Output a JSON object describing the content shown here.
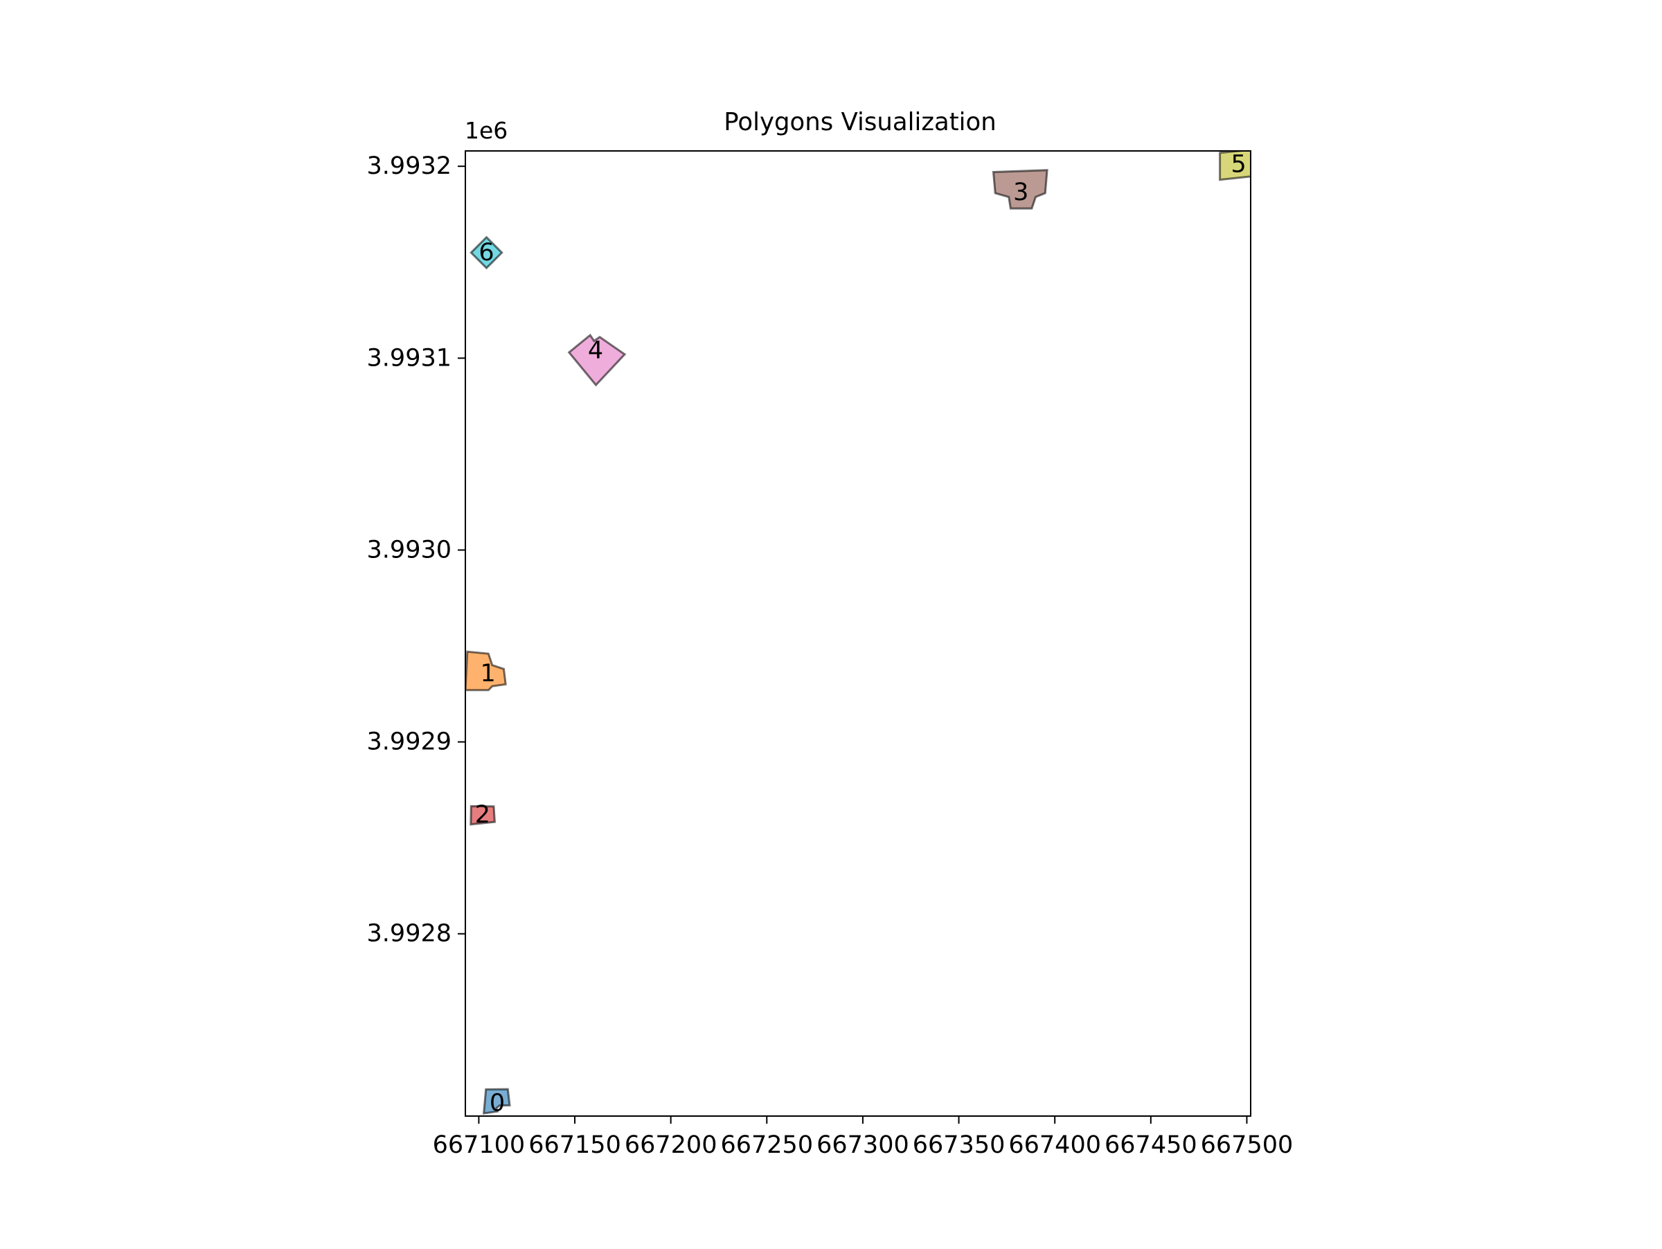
{
  "chart_data": {
    "type": "polygon-map",
    "title": "Polygons Visualization",
    "xlabel": "",
    "ylabel": "",
    "y_offset_label": "1e6",
    "xlim": [
      667093,
      667502
    ],
    "ylim": [
      3992705,
      3993208
    ],
    "xticks": [
      667100,
      667150,
      667200,
      667250,
      667300,
      667350,
      667400,
      667450,
      667500
    ],
    "xtick_labels": [
      "667100",
      "667150",
      "667200",
      "667250",
      "667300",
      "667350",
      "667400",
      "667450",
      "667500"
    ],
    "yticks": [
      3992800,
      3992900,
      3993000,
      3993100,
      3993200
    ],
    "ytick_labels": [
      "3.9928",
      "3.9929",
      "3.9930",
      "3.9931",
      "3.9932"
    ],
    "grid": false,
    "legend": "none",
    "polygons": [
      {
        "label": "0",
        "color": "#1f77b4",
        "points": [
          [
            667102.6,
            3992706.4
          ],
          [
            667109.7,
            3992707.4
          ],
          [
            667109.2,
            3992709.2
          ],
          [
            667110.8,
            3992710.5
          ],
          [
            667116.1,
            3992710.6
          ],
          [
            667115.1,
            3992719.0
          ],
          [
            667103.7,
            3992718.9
          ]
        ]
      },
      {
        "label": "1",
        "color": "#ff7f0e",
        "points": [
          [
            667093.0,
            3992927.0
          ],
          [
            667105.0,
            3992927.0
          ],
          [
            667107.0,
            3992929.0
          ],
          [
            667114.0,
            3992930.0
          ],
          [
            667113.0,
            3992938.0
          ],
          [
            667107.0,
            3992940.0
          ],
          [
            667105.0,
            3992946.0
          ],
          [
            667094.0,
            3992947.0
          ]
        ]
      },
      {
        "label": "2",
        "color": "#d62728",
        "points": [
          [
            667095.8,
            3992857.0
          ],
          [
            667108.3,
            3992858.3
          ],
          [
            667107.8,
            3992866.4
          ],
          [
            667096.0,
            3992866.5
          ]
        ]
      },
      {
        "label": "3",
        "color": "#8c564b",
        "points": [
          [
            667368.0,
            3993197.0
          ],
          [
            667396.0,
            3993198.0
          ],
          [
            667395.0,
            3993186.0
          ],
          [
            667390.0,
            3993184.0
          ],
          [
            667388.0,
            3993178.0
          ],
          [
            667377.0,
            3993178.0
          ],
          [
            667376.0,
            3993184.0
          ],
          [
            667369.0,
            3993186.0
          ]
        ]
      },
      {
        "label": "4",
        "color": "#e377c2",
        "points": [
          [
            667158.0,
            3993112.0
          ],
          [
            667147.0,
            3993103.0
          ],
          [
            667161.0,
            3993086.0
          ],
          [
            667176.0,
            3993102.0
          ],
          [
            667163.0,
            3993111.0
          ],
          [
            667160.0,
            3993109.0
          ]
        ]
      },
      {
        "label": "5",
        "color": "#bcbd22",
        "points": [
          [
            667486.0,
            3993207.0
          ],
          [
            667506.0,
            3993209.0
          ],
          [
            667505.0,
            3993195.0
          ],
          [
            667486.0,
            3993193.0
          ]
        ]
      },
      {
        "label": "6",
        "color": "#17becf",
        "points": [
          [
            667104.0,
            3993163.0
          ],
          [
            667112.0,
            3993155.0
          ],
          [
            667104.0,
            3993147.0
          ],
          [
            667096.0,
            3993155.0
          ]
        ]
      }
    ]
  }
}
